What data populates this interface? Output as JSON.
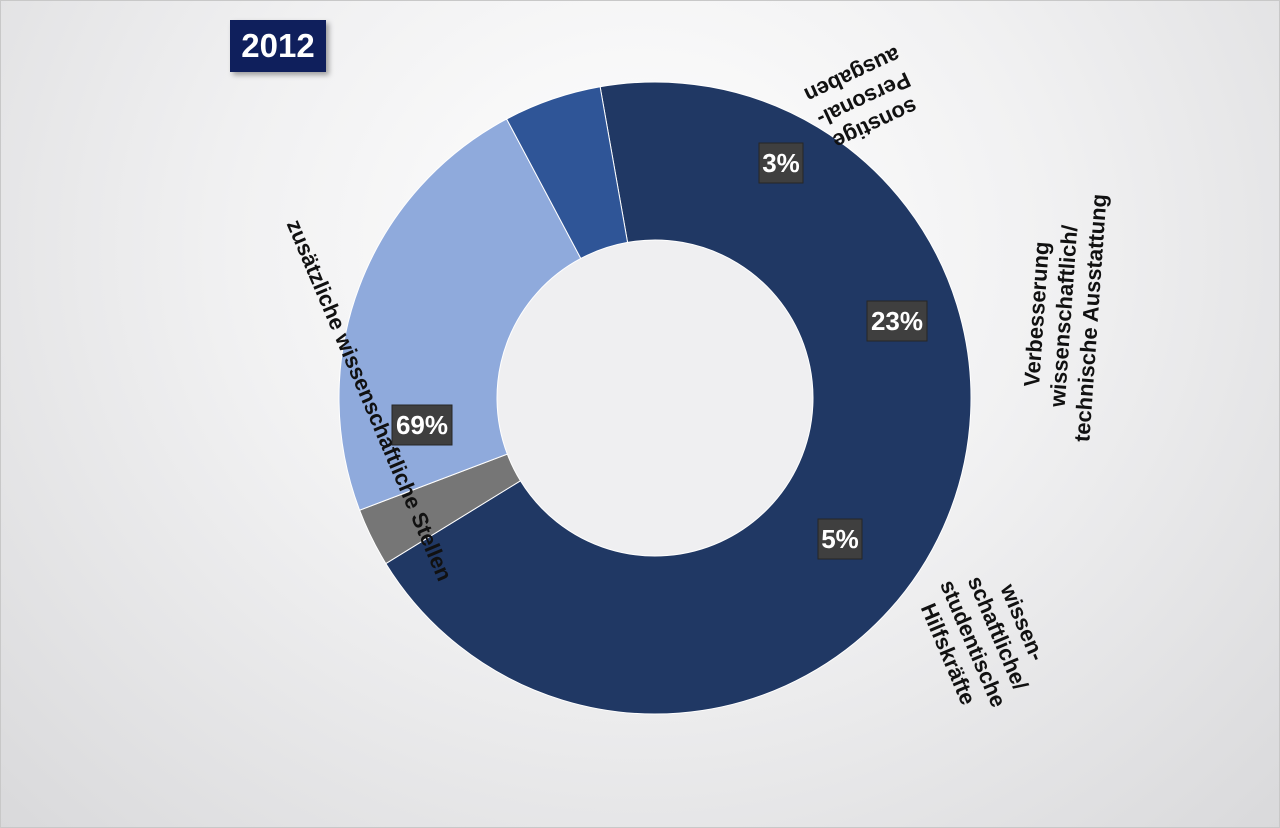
{
  "year_label": "2012",
  "chart_data": {
    "type": "pie",
    "variant": "donut",
    "slices": [
      {
        "label": "zusätzliche wissenschaftliche Stellen",
        "value": 69,
        "value_label": "69%",
        "color": "#203864"
      },
      {
        "label": "sonstige Personal-ausgaben",
        "value": 3,
        "value_label": "3%",
        "color": "#767676"
      },
      {
        "label": "Verbesserung wissenschaftlich/ technische Ausstattung",
        "value": 23,
        "value_label": "23%",
        "color": "#8faadc"
      },
      {
        "label": "wissen-schaftliche/ studentische Hilfskräfte",
        "value": 5,
        "value_label": "5%",
        "color": "#2f5597"
      }
    ],
    "category_label_lines": [
      [
        "zusätzliche wissenschaftliche Stellen"
      ],
      [
        "sonstige",
        "Personal-",
        "ausgaben"
      ],
      [
        "Verbesserung",
        "wissenschaftlich/",
        "technische Ausstattung"
      ],
      [
        "wissen-",
        "schaftliche/",
        "studentische",
        "Hilfskräfte"
      ]
    ]
  }
}
